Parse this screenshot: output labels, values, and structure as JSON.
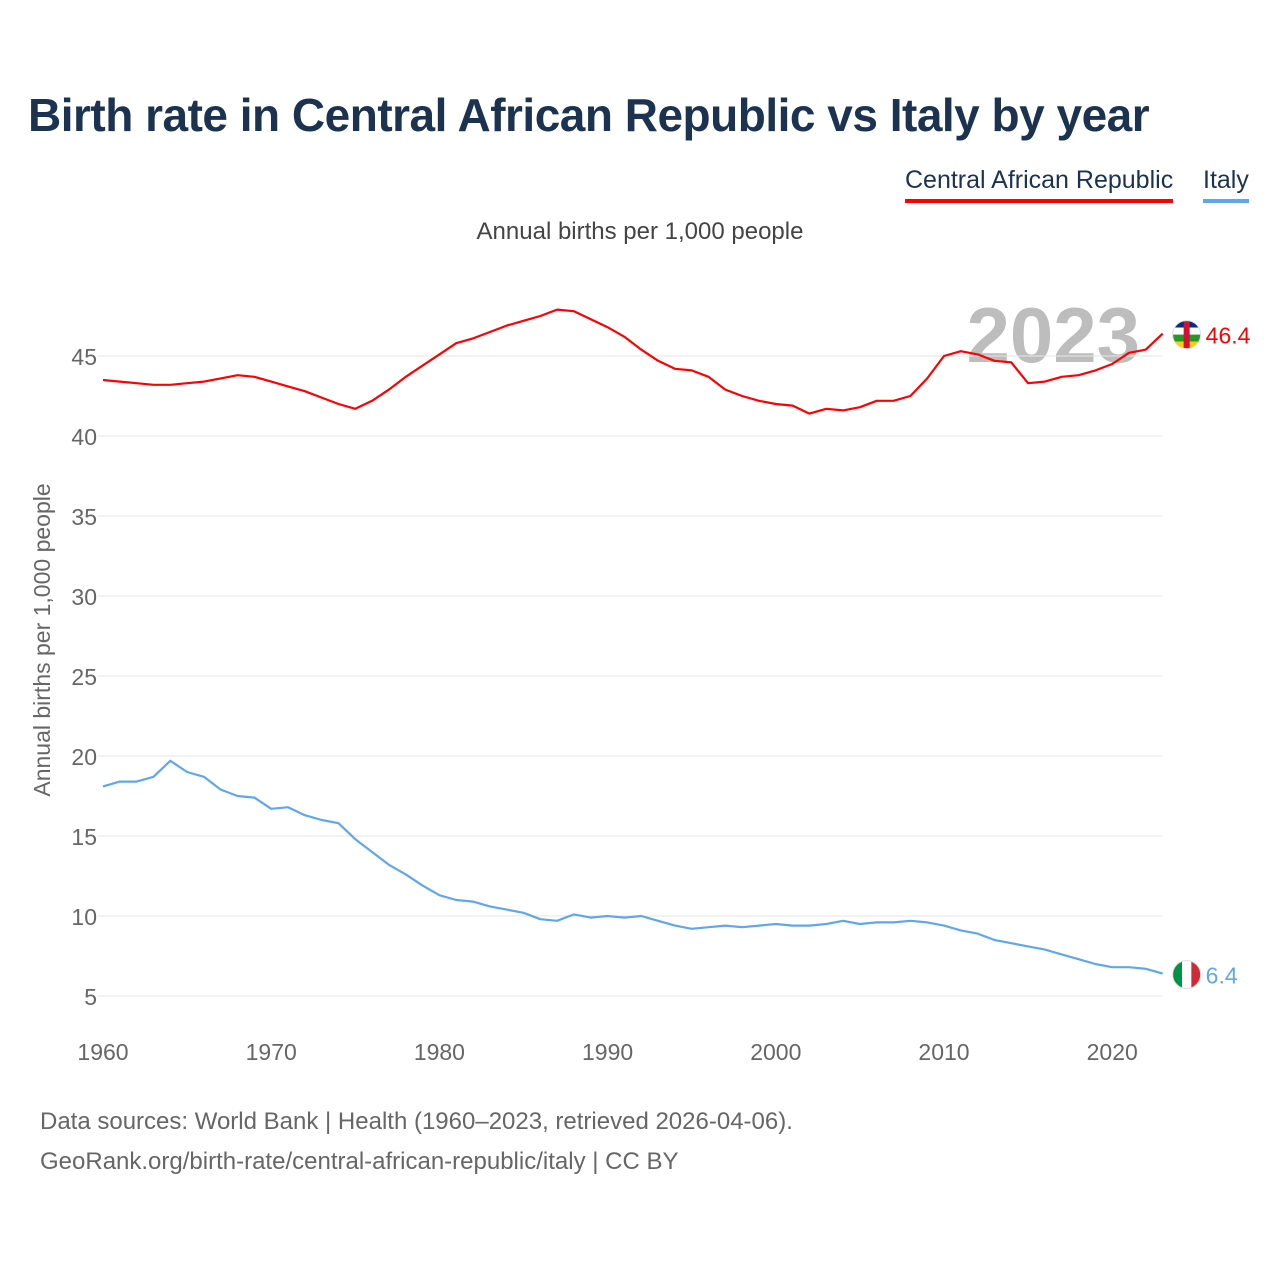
{
  "title": "Birth rate in Central African Republic vs Italy by year",
  "footer": {
    "line1": "Data sources: World Bank | Health (1960–2023, retrieved 2026-04-06).",
    "line2": "GeoRank.org/birth-rate/central-african-republic/italy | CC BY"
  },
  "chart_data": {
    "type": "line",
    "title": "Birth rate in Central African Republic vs Italy by year",
    "subtitle": "Annual births per 1,000 people",
    "xlabel": "",
    "ylabel": "Annual births per 1,000 people",
    "xlim": [
      1960,
      2023
    ],
    "ylim": [
      3,
      49
    ],
    "x_ticks": [
      "1960",
      "1970",
      "1980",
      "1990",
      "2000",
      "2010",
      "2020"
    ],
    "y_ticks": [
      "5",
      "10",
      "15",
      "20",
      "25",
      "30",
      "35",
      "40",
      "45"
    ],
    "grid": true,
    "legend_position": "top-right",
    "year_watermark": "2023",
    "x": [
      1960,
      1961,
      1962,
      1963,
      1964,
      1965,
      1966,
      1967,
      1968,
      1969,
      1970,
      1971,
      1972,
      1973,
      1974,
      1975,
      1976,
      1977,
      1978,
      1979,
      1980,
      1981,
      1982,
      1983,
      1984,
      1985,
      1986,
      1987,
      1988,
      1989,
      1990,
      1991,
      1992,
      1993,
      1994,
      1995,
      1996,
      1997,
      1998,
      1999,
      2000,
      2001,
      2002,
      2003,
      2004,
      2005,
      2006,
      2007,
      2008,
      2009,
      2010,
      2011,
      2012,
      2013,
      2014,
      2015,
      2016,
      2017,
      2018,
      2019,
      2020,
      2021,
      2022,
      2023
    ],
    "series": [
      {
        "name": "Central African Republic",
        "color": "#ff0000",
        "end_label": "46.4",
        "values": [
          43.5,
          43.4,
          43.3,
          43.2,
          43.2,
          43.3,
          43.4,
          43.6,
          43.8,
          43.7,
          43.4,
          43.1,
          42.8,
          42.4,
          42.0,
          41.7,
          42.2,
          42.9,
          43.7,
          44.4,
          45.1,
          45.8,
          46.1,
          46.5,
          46.9,
          47.2,
          47.5,
          47.9,
          47.8,
          47.3,
          46.8,
          46.2,
          45.4,
          44.7,
          44.2,
          44.1,
          43.7,
          42.9,
          42.5,
          42.2,
          42.0,
          41.9,
          41.4,
          41.7,
          41.6,
          41.8,
          42.2,
          42.2,
          42.5,
          43.6,
          45.0,
          45.3,
          45.1,
          44.7,
          44.6,
          43.3,
          43.4,
          43.7,
          43.8,
          44.1,
          44.5,
          45.2,
          45.4,
          46.4
        ]
      },
      {
        "name": "Italy",
        "color": "#5fa7ec",
        "end_label": "6.4",
        "values": [
          18.1,
          18.4,
          18.4,
          18.7,
          19.7,
          19.0,
          18.7,
          17.9,
          17.5,
          17.4,
          16.7,
          16.8,
          16.3,
          16.0,
          15.8,
          14.8,
          14.0,
          13.2,
          12.6,
          11.9,
          11.3,
          11.0,
          10.9,
          10.6,
          10.4,
          10.2,
          9.8,
          9.7,
          10.1,
          9.9,
          10.0,
          9.9,
          10.0,
          9.7,
          9.4,
          9.2,
          9.3,
          9.4,
          9.3,
          9.4,
          9.5,
          9.4,
          9.4,
          9.5,
          9.7,
          9.5,
          9.6,
          9.6,
          9.7,
          9.6,
          9.4,
          9.1,
          8.9,
          8.5,
          8.3,
          8.1,
          7.9,
          7.6,
          7.3,
          7.0,
          6.8,
          6.8,
          6.7,
          6.4
        ]
      }
    ]
  }
}
